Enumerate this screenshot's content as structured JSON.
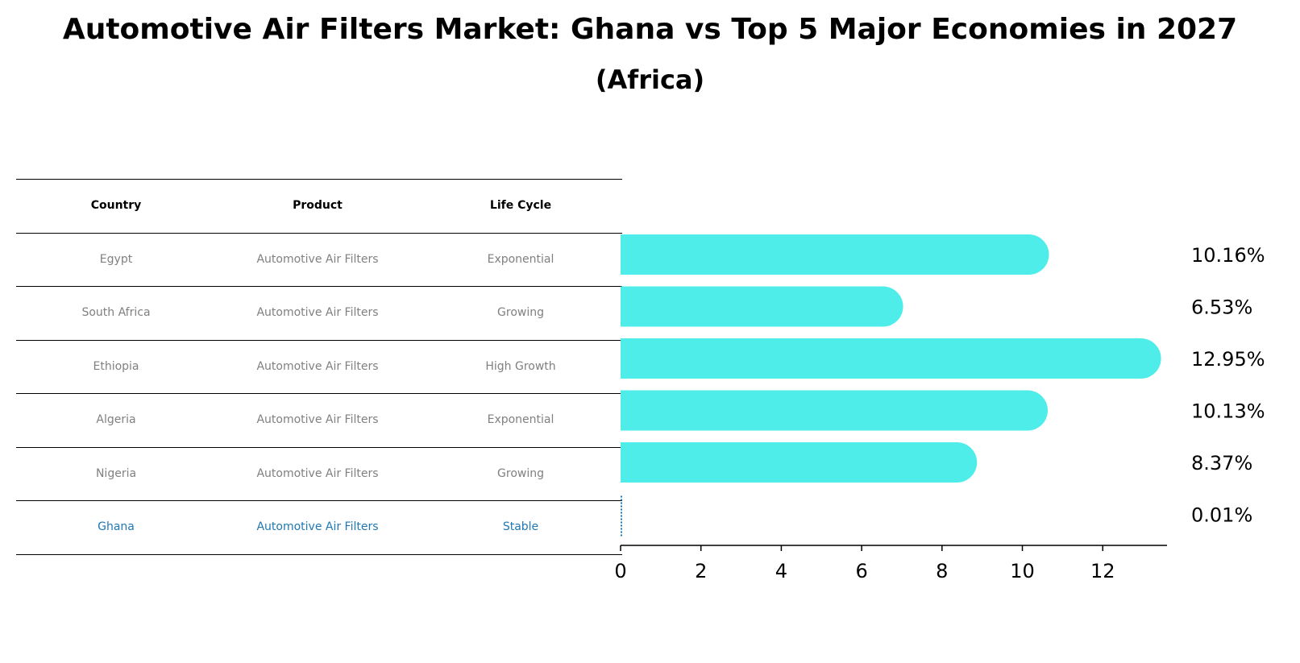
{
  "title": "Automotive Air Filters Market: Ghana vs Top 5 Major Economies in 2027",
  "subtitle": "(Africa)",
  "table": {
    "headers": [
      "Country",
      "Product",
      "Life Cycle"
    ],
    "rows": [
      [
        "Egypt",
        "Automotive Air Filters",
        "Exponential"
      ],
      [
        "South Africa",
        "Automotive Air Filters",
        "Growing"
      ],
      [
        "Ethiopia",
        "Automotive Air Filters",
        "High Growth"
      ],
      [
        "Algeria",
        "Automotive Air Filters",
        "Exponential"
      ],
      [
        "Nigeria",
        "Automotive Air Filters",
        "Growing"
      ],
      [
        "Ghana",
        "Automotive Air Filters",
        "Stable"
      ]
    ],
    "highlight_row": 5
  },
  "chart_data": {
    "type": "bar",
    "orientation": "horizontal",
    "categories": [
      "Egypt",
      "South Africa",
      "Ethiopia",
      "Algeria",
      "Nigeria",
      "Ghana"
    ],
    "values": [
      10.16,
      6.53,
      12.95,
      10.13,
      8.37,
      0.01
    ],
    "labels": [
      "10.16%",
      "6.53%",
      "12.95%",
      "10.13%",
      "8.37%",
      "0.01%"
    ],
    "xlim": [
      0,
      13.6
    ],
    "xticks": [
      0,
      2,
      4,
      6,
      8,
      10,
      12
    ],
    "bar_color": "#4EEDEA",
    "highlight_color": "#1f77b4"
  }
}
